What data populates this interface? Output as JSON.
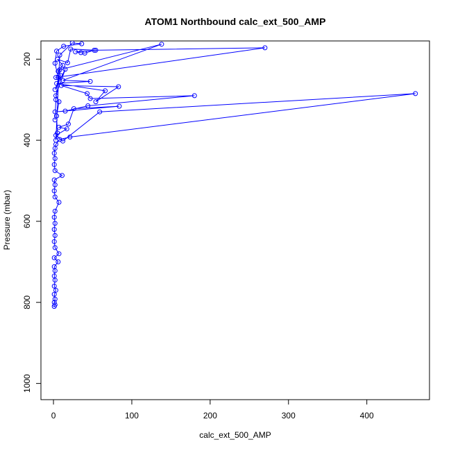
{
  "chart_data": {
    "type": "line",
    "title": "ATOM1 Northbound calc_ext_500_AMP",
    "xlabel": "calc_ext_500_AMP",
    "ylabel": "Pressure (mbar)",
    "xlim": [
      -16,
      480
    ],
    "ylim": [
      1040,
      155
    ],
    "y_reversed": true,
    "x_ticks": [
      0,
      100,
      200,
      300,
      400
    ],
    "y_ticks": [
      200,
      400,
      600,
      800,
      1000
    ],
    "grid": false,
    "legend": "none",
    "series_color": "#0000ff",
    "points": [
      [
        1,
        810
      ],
      [
        2,
        806
      ],
      [
        1,
        800
      ],
      [
        2,
        792
      ],
      [
        1,
        780
      ],
      [
        3,
        770
      ],
      [
        1,
        760
      ],
      [
        2,
        745
      ],
      [
        1,
        735
      ],
      [
        2,
        722
      ],
      [
        1,
        712
      ],
      [
        6,
        700
      ],
      [
        1,
        690
      ],
      [
        7,
        680
      ],
      [
        2,
        665
      ],
      [
        1,
        650
      ],
      [
        2,
        635
      ],
      [
        1,
        620
      ],
      [
        2,
        605
      ],
      [
        1,
        590
      ],
      [
        2,
        575
      ],
      [
        7,
        553
      ],
      [
        2,
        540
      ],
      [
        1,
        525
      ],
      [
        2,
        510
      ],
      [
        1,
        498
      ],
      [
        11,
        487
      ],
      [
        2,
        475
      ],
      [
        1,
        460
      ],
      [
        2,
        445
      ],
      [
        1,
        432
      ],
      [
        2,
        420
      ],
      [
        3,
        410
      ],
      [
        8,
        398
      ],
      [
        21,
        392
      ],
      [
        462,
        285
      ],
      [
        59,
        330
      ],
      [
        12,
        402
      ],
      [
        3,
        388
      ],
      [
        17,
        372
      ],
      [
        7,
        368
      ],
      [
        19,
        360
      ],
      [
        26,
        322
      ],
      [
        84,
        316
      ],
      [
        2,
        330
      ],
      [
        15,
        328
      ],
      [
        44,
        315
      ],
      [
        180,
        290
      ],
      [
        47,
        297
      ],
      [
        43,
        285
      ],
      [
        10,
        265
      ],
      [
        83,
        268
      ],
      [
        54,
        305
      ],
      [
        66,
        278
      ],
      [
        4,
        260
      ],
      [
        47,
        255
      ],
      [
        12,
        252
      ],
      [
        138,
        163
      ],
      [
        8,
        226
      ],
      [
        3,
        245
      ],
      [
        270,
        172
      ],
      [
        52,
        178
      ],
      [
        40,
        185
      ],
      [
        35,
        184
      ],
      [
        28,
        182
      ],
      [
        54,
        178
      ],
      [
        22,
        175
      ],
      [
        18,
        209
      ],
      [
        5,
        200
      ],
      [
        12,
        215
      ],
      [
        6,
        230
      ],
      [
        9,
        240
      ],
      [
        2,
        275
      ],
      [
        15,
        225
      ],
      [
        3,
        290
      ],
      [
        7,
        305
      ],
      [
        4,
        340
      ],
      [
        5,
        382
      ],
      [
        3,
        400
      ],
      [
        8,
        190
      ],
      [
        24,
        160
      ],
      [
        36,
        162
      ],
      [
        13,
        168
      ],
      [
        4,
        180
      ],
      [
        2,
        210
      ],
      [
        6,
        245
      ],
      [
        3,
        300
      ],
      [
        2,
        350
      ]
    ]
  }
}
